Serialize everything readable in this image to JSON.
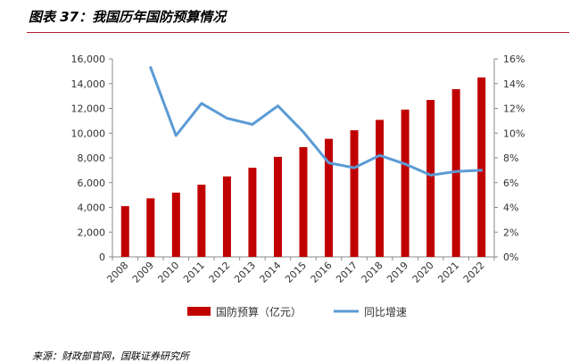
{
  "figure": {
    "title": "图表 37：我国历年国防预算情况",
    "source": "来源：财政部官网，国联证券研究所"
  },
  "chart_data": {
    "type": "bar",
    "title": "",
    "categories": [
      "2008",
      "2009",
      "2010",
      "2011",
      "2012",
      "2013",
      "2014",
      "2015",
      "2016",
      "2017",
      "2018",
      "2019",
      "2020",
      "2021",
      "2022"
    ],
    "series": [
      {
        "name": "国防预算（亿元）",
        "type": "bar",
        "axis": "left",
        "color": "#c00000",
        "values": [
          4100,
          4730,
          5190,
          5830,
          6500,
          7200,
          8080,
          8870,
          9540,
          10230,
          11070,
          11900,
          12680,
          13550,
          14500
        ]
      },
      {
        "name": "同比增速",
        "type": "line",
        "axis": "right",
        "color": "#5b9bd5",
        "values": [
          null,
          15.3,
          9.8,
          12.4,
          11.2,
          10.7,
          12.2,
          10.1,
          7.6,
          7.2,
          8.2,
          7.5,
          6.6,
          6.9,
          7.0
        ]
      }
    ],
    "y_left": {
      "min": 0,
      "max": 16000,
      "step": 2000,
      "tick_labels": [
        "0",
        "2,000",
        "4,000",
        "6,000",
        "8,000",
        "10,000",
        "12,000",
        "14,000",
        "16,000"
      ]
    },
    "y_right": {
      "min": 0,
      "max": 16,
      "step": 2,
      "tick_labels": [
        "0%",
        "2%",
        "4%",
        "6%",
        "8%",
        "10%",
        "12%",
        "14%",
        "16%"
      ]
    },
    "grid": false,
    "legend_position": "bottom"
  }
}
